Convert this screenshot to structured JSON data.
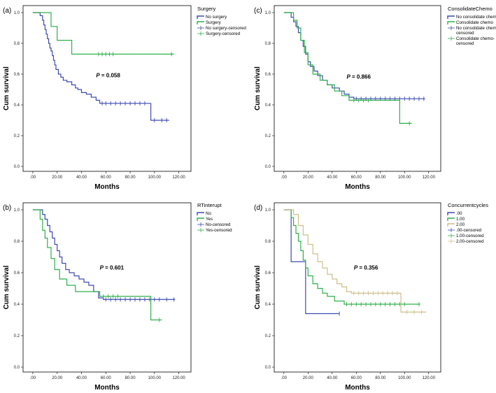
{
  "chart_data": [
    {
      "type": "line",
      "subtype": "kaplan-meier",
      "panel_label": "(a)",
      "xlabel": "Months",
      "ylabel": "Cum survival",
      "xticks": [
        ".00",
        "20.00",
        "40.00",
        "60.00",
        "80.00",
        "100.00",
        "120.00"
      ],
      "yticks": [
        "0.0",
        "0.2",
        "0.4",
        "0.6",
        "0.8",
        "1.0"
      ],
      "xlim": [
        -8,
        130
      ],
      "ylim": [
        0,
        1
      ],
      "annotation": {
        "P": "P",
        "rest": " = 0.058",
        "x": 52,
        "y": 0.58
      },
      "legend": {
        "title": "Surgery",
        "entries": [
          {
            "label": "No surgery",
            "kind": "line",
            "color": "#3c4bb4"
          },
          {
            "label": "Surgery",
            "kind": "line",
            "color": "#2eb14a"
          },
          {
            "label": "No surgery-censored",
            "kind": "censor",
            "color": "#3c4bb4"
          },
          {
            "label": "Surgery-censored",
            "kind": "censor",
            "color": "#2eb14a"
          }
        ]
      },
      "series": [
        {
          "name": "No surgery",
          "color": "#3c4bb4",
          "steps": [
            [
              0,
              1
            ],
            [
              6,
              0.98
            ],
            [
              8,
              0.95
            ],
            [
              9,
              0.92
            ],
            [
              10,
              0.89
            ],
            [
              11,
              0.86
            ],
            [
              12,
              0.83
            ],
            [
              13,
              0.8
            ],
            [
              14,
              0.77
            ],
            [
              15,
              0.75
            ],
            [
              16,
              0.72
            ],
            [
              17,
              0.69
            ],
            [
              18,
              0.66
            ],
            [
              19,
              0.63
            ],
            [
              21,
              0.6
            ],
            [
              23,
              0.58
            ],
            [
              25,
              0.56
            ],
            [
              28,
              0.55
            ],
            [
              32,
              0.53
            ],
            [
              35,
              0.51
            ],
            [
              37,
              0.5
            ],
            [
              40,
              0.48
            ],
            [
              44,
              0.47
            ],
            [
              48,
              0.45
            ],
            [
              52,
              0.43
            ],
            [
              55,
              0.41
            ],
            [
              97,
              0.3
            ]
          ],
          "end": 112,
          "censored": [
            57,
            60,
            64,
            68,
            72,
            76,
            80,
            84,
            88,
            92,
            100,
            106,
            110
          ]
        },
        {
          "name": "Surgery",
          "color": "#2eb14a",
          "steps": [
            [
              0,
              1
            ],
            [
              15,
              0.91
            ],
            [
              20,
              0.82
            ],
            [
              32,
              0.73
            ]
          ],
          "end": 116,
          "censored": [
            54,
            57,
            60,
            63,
            66,
            114
          ]
        }
      ]
    },
    {
      "type": "line",
      "subtype": "kaplan-meier",
      "panel_label": "(c)",
      "xlabel": "Months",
      "ylabel": "Cum survival",
      "xticks": [
        ".00",
        "20.00",
        "40.00",
        "60.00",
        "80.00",
        "100.00",
        "120.00"
      ],
      "yticks": [
        "0.0",
        "0.2",
        "0.4",
        "0.6",
        "0.8",
        "1.0"
      ],
      "xlim": [
        -8,
        130
      ],
      "ylim": [
        0,
        1
      ],
      "annotation": {
        "P": "P",
        "rest": " = 0.866",
        "x": 52,
        "y": 0.57
      },
      "legend": {
        "title": "ConsolidateChemo",
        "entries": [
          {
            "label": "No consolidate chemo",
            "kind": "line",
            "color": "#3c4bb4"
          },
          {
            "label": "Consolidate chemo",
            "kind": "line",
            "color": "#2eb14a"
          },
          {
            "label": "No consolidate chemo-",
            "label2": "censored",
            "kind": "censor",
            "color": "#3c4bb4"
          },
          {
            "label": "Consolidate chemo-",
            "label2": "censored",
            "kind": "censor",
            "color": "#2eb14a"
          }
        ]
      },
      "series": [
        {
          "name": "No consolidate chemo",
          "color": "#3c4bb4",
          "steps": [
            [
              0,
              1
            ],
            [
              6,
              0.97
            ],
            [
              8,
              0.94
            ],
            [
              10,
              0.91
            ],
            [
              12,
              0.87
            ],
            [
              14,
              0.82
            ],
            [
              16,
              0.78
            ],
            [
              18,
              0.73
            ],
            [
              20,
              0.68
            ],
            [
              22,
              0.65
            ],
            [
              25,
              0.62
            ],
            [
              28,
              0.59
            ],
            [
              32,
              0.56
            ],
            [
              36,
              0.53
            ],
            [
              40,
              0.51
            ],
            [
              46,
              0.49
            ],
            [
              50,
              0.47
            ],
            [
              54,
              0.45
            ],
            [
              58,
              0.44
            ]
          ],
          "end": 117,
          "censored": [
            60,
            64,
            68,
            72,
            76,
            80,
            84,
            88,
            92,
            96,
            100,
            104,
            108,
            112,
            116
          ]
        },
        {
          "name": "Consolidate chemo",
          "color": "#2eb14a",
          "steps": [
            [
              0,
              1
            ],
            [
              8,
              0.95
            ],
            [
              11,
              0.9
            ],
            [
              14,
              0.82
            ],
            [
              17,
              0.74
            ],
            [
              20,
              0.66
            ],
            [
              24,
              0.6
            ],
            [
              30,
              0.56
            ],
            [
              36,
              0.53
            ],
            [
              42,
              0.49
            ],
            [
              48,
              0.46
            ],
            [
              54,
              0.43
            ],
            [
              96,
              0.28
            ]
          ],
          "end": 106,
          "censored": [
            58,
            62,
            66,
            70,
            104
          ]
        }
      ]
    },
    {
      "type": "line",
      "subtype": "kaplan-meier",
      "panel_label": "(b)",
      "xlabel": "Months",
      "ylabel": "Cum survival",
      "xticks": [
        ".00",
        "20.00",
        "40.00",
        "60.00",
        "80.00",
        "100.00",
        "120.00"
      ],
      "yticks": [
        "0.0",
        "0.2",
        "0.4",
        "0.6",
        "0.8",
        "1.0"
      ],
      "xlim": [
        -8,
        130
      ],
      "ylim": [
        0,
        1
      ],
      "annotation": {
        "P": "P",
        "rest": " = 0.601",
        "x": 55,
        "y": 0.62
      },
      "legend": {
        "title": "RTinterupt",
        "entries": [
          {
            "label": "No",
            "kind": "line",
            "color": "#3c4bb4"
          },
          {
            "label": "Yes",
            "kind": "line",
            "color": "#2eb14a"
          },
          {
            "label": "No-censored",
            "kind": "censor",
            "color": "#3c4bb4"
          },
          {
            "label": "Yes-censored",
            "kind": "censor",
            "color": "#2eb14a"
          }
        ]
      },
      "series": [
        {
          "name": "No",
          "color": "#3c4bb4",
          "steps": [
            [
              0,
              1
            ],
            [
              8,
              0.97
            ],
            [
              10,
              0.94
            ],
            [
              12,
              0.9
            ],
            [
              14,
              0.86
            ],
            [
              16,
              0.82
            ],
            [
              18,
              0.78
            ],
            [
              20,
              0.74
            ],
            [
              22,
              0.7
            ],
            [
              24,
              0.66
            ],
            [
              27,
              0.62
            ],
            [
              30,
              0.6
            ],
            [
              34,
              0.58
            ],
            [
              38,
              0.56
            ],
            [
              42,
              0.54
            ],
            [
              46,
              0.52
            ],
            [
              50,
              0.48
            ],
            [
              54,
              0.44
            ],
            [
              58,
              0.43
            ]
          ],
          "end": 117,
          "censored": [
            60,
            64,
            68,
            72,
            76,
            80,
            84,
            88,
            92,
            96,
            100,
            104,
            110,
            116
          ]
        },
        {
          "name": "Yes",
          "color": "#2eb14a",
          "steps": [
            [
              0,
              1
            ],
            [
              6,
              0.94
            ],
            [
              8,
              0.87
            ],
            [
              10,
              0.82
            ],
            [
              12,
              0.76
            ],
            [
              15,
              0.69
            ],
            [
              18,
              0.62
            ],
            [
              22,
              0.56
            ],
            [
              28,
              0.52
            ],
            [
              35,
              0.48
            ],
            [
              55,
              0.45
            ],
            [
              97,
              0.3
            ]
          ],
          "end": 106,
          "censored": [
            58,
            62,
            66,
            70,
            104
          ]
        }
      ]
    },
    {
      "type": "line",
      "subtype": "kaplan-meier",
      "panel_label": "(d)",
      "xlabel": "Months",
      "ylabel": "Cum survival",
      "xticks": [
        ".00",
        "20.00",
        "40.00",
        "60.00",
        "80.00",
        "100.00",
        "120.00"
      ],
      "yticks": [
        "0.0",
        "0.2",
        "0.4",
        "0.6",
        "0.8",
        "1.0"
      ],
      "xlim": [
        -8,
        130
      ],
      "ylim": [
        0,
        1
      ],
      "annotation": {
        "P": "P",
        "rest": " = 0.356",
        "x": 58,
        "y": 0.62
      },
      "legend": {
        "title": "Concurrentcycles",
        "entries": [
          {
            "label": ".00",
            "kind": "line",
            "color": "#3c4bb4"
          },
          {
            "label": "1.00",
            "kind": "line",
            "color": "#2eb14a"
          },
          {
            "label": "2.00",
            "kind": "line",
            "color": "#cdbf8a"
          },
          {
            "label": ".00-censored",
            "kind": "censor",
            "color": "#3c4bb4"
          },
          {
            "label": "1.00-censored",
            "kind": "censor",
            "color": "#2eb14a"
          },
          {
            "label": "2.00-censored",
            "kind": "censor",
            "color": "#cdbf8a"
          }
        ]
      },
      "series": [
        {
          "name": ".00",
          "color": "#3c4bb4",
          "steps": [
            [
              0,
              1
            ],
            [
              6,
              0.67
            ],
            [
              18,
              0.34
            ]
          ],
          "end": 46,
          "censored": [
            46
          ]
        },
        {
          "name": "1.00",
          "color": "#2eb14a",
          "steps": [
            [
              0,
              1
            ],
            [
              6,
              0.95
            ],
            [
              8,
              0.9
            ],
            [
              10,
              0.85
            ],
            [
              12,
              0.8
            ],
            [
              14,
              0.74
            ],
            [
              16,
              0.68
            ],
            [
              18,
              0.63
            ],
            [
              20,
              0.58
            ],
            [
              24,
              0.53
            ],
            [
              28,
              0.5
            ],
            [
              32,
              0.47
            ],
            [
              36,
              0.45
            ],
            [
              42,
              0.42
            ],
            [
              50,
              0.4
            ]
          ],
          "end": 113,
          "censored": [
            52,
            56,
            60,
            64,
            68,
            72,
            76,
            80,
            84,
            88,
            92,
            96,
            100,
            112
          ]
        },
        {
          "name": "2.00",
          "color": "#cdbf8a",
          "steps": [
            [
              0,
              1
            ],
            [
              8,
              0.97
            ],
            [
              12,
              0.9
            ],
            [
              16,
              0.84
            ],
            [
              20,
              0.78
            ],
            [
              24,
              0.72
            ],
            [
              28,
              0.67
            ],
            [
              32,
              0.63
            ],
            [
              36,
              0.59
            ],
            [
              40,
              0.56
            ],
            [
              44,
              0.53
            ],
            [
              48,
              0.51
            ],
            [
              52,
              0.48
            ],
            [
              56,
              0.47
            ],
            [
              97,
              0.35
            ]
          ],
          "end": 118,
          "censored": [
            58,
            62,
            66,
            70,
            74,
            78,
            82,
            86,
            90,
            94,
            102,
            108,
            114
          ]
        }
      ]
    }
  ]
}
